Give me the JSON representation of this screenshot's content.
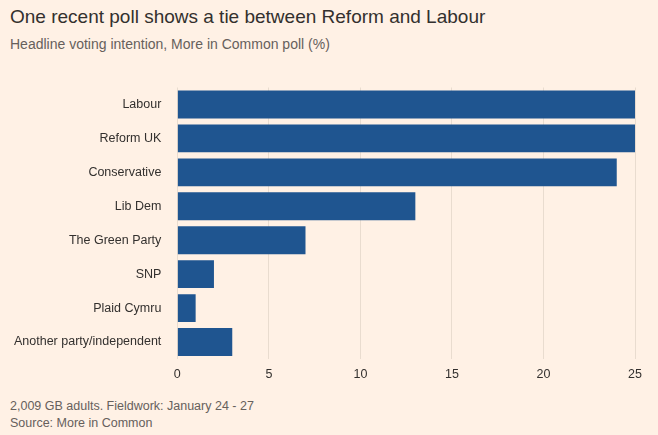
{
  "chart_data": {
    "type": "bar",
    "title": "One recent poll shows a tie between Reform and Labour",
    "subtitle": "Headline voting intention, More in Common poll (%)",
    "categories": [
      "Labour",
      "Reform UK",
      "Conservative",
      "Lib Dem",
      "The Green Party",
      "SNP",
      "Plaid Cymru",
      "Another party/independent"
    ],
    "values": [
      25,
      25,
      24,
      13,
      7,
      2,
      1,
      3
    ],
    "color": "#1f5590",
    "orientation": "horizontal",
    "xlim": [
      0,
      25
    ],
    "xticks": [
      0,
      5,
      10,
      15,
      20,
      25
    ],
    "grid": true,
    "footer": [
      "2,009 GB adults. Fieldwork: January 24 - 27",
      "Source: More in Common"
    ]
  }
}
